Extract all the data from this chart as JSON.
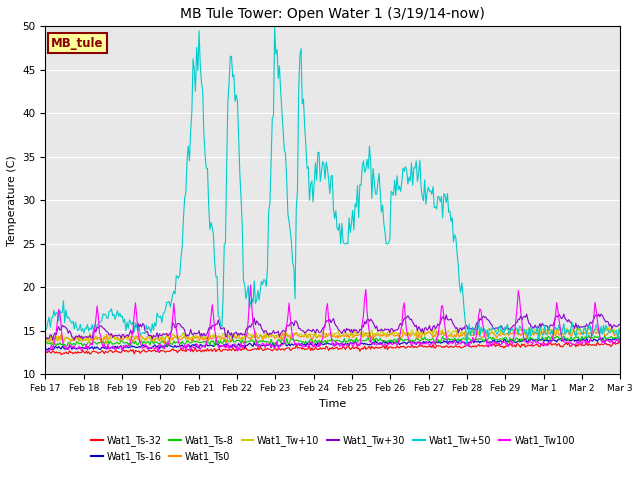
{
  "title": "MB Tule Tower: Open Water 1 (3/19/14-now)",
  "xlabel": "Time",
  "ylabel": "Temperature (C)",
  "ylim": [
    10,
    50
  ],
  "xlim": [
    0,
    15
  ],
  "background_color": "#e8e8e8",
  "label_box_text": "MB_tule",
  "label_box_facecolor": "#ffff99",
  "label_box_edgecolor": "#8b0000",
  "label_box_textcolor": "#8b0000",
  "xtick_labels": [
    "Feb 17",
    "Feb 18",
    "Feb 19",
    "Feb 20",
    "Feb 21",
    "Feb 22",
    "Feb 23",
    "Feb 24",
    "Feb 25",
    "Feb 26",
    "Feb 27",
    "Feb 28",
    "Feb 29",
    "Mar 1",
    "Mar 2",
    "Mar 3"
  ],
  "series": [
    {
      "name": "Wat1_Ts-32",
      "color": "#ff0000"
    },
    {
      "name": "Wat1_Ts-16",
      "color": "#0000cc"
    },
    {
      "name": "Wat1_Ts-8",
      "color": "#00cc00"
    },
    {
      "name": "Wat1_Ts0",
      "color": "#ff8800"
    },
    {
      "name": "Wat1_Tw+10",
      "color": "#cccc00"
    },
    {
      "name": "Wat1_Tw+30",
      "color": "#8800cc"
    },
    {
      "name": "Wat1_Tw+50",
      "color": "#00cccc"
    },
    {
      "name": "Wat1_Tw100",
      "color": "#ff00ff"
    }
  ],
  "legend_ncol": 6,
  "figsize": [
    6.4,
    4.8
  ],
  "dpi": 100
}
